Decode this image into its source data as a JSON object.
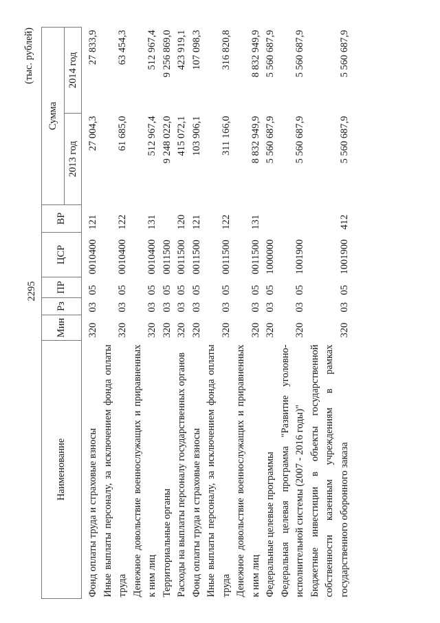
{
  "page_number": "2295",
  "units": "(тыс. рублей)",
  "headers": {
    "name": "Наименование",
    "min": "Мин",
    "rz": "Рз",
    "pr": "ПР",
    "csr": "ЦСР",
    "vr": "ВР",
    "sum": "Сумма",
    "y2013": "2013 год",
    "y2014": "2014 год"
  },
  "rows": [
    {
      "name": "Фонд оплаты труда и страховые взносы",
      "min": "320",
      "rz": "03",
      "pr": "05",
      "csr": "0010400",
      "vr": "121",
      "y2013": "27 004,3",
      "y2014": "27 833,9"
    },
    {
      "name": "Иные выплаты персоналу, за исключением фонда оплаты труда",
      "min": "320",
      "rz": "03",
      "pr": "05",
      "csr": "0010400",
      "vr": "122",
      "y2013": "61 685,0",
      "y2014": "63 454,3"
    },
    {
      "name": "Денежное довольствие военнослужащих и приравненных к ним лиц",
      "min": "320",
      "rz": "03",
      "pr": "05",
      "csr": "0010400",
      "vr": "131",
      "y2013": "512 967,4",
      "y2014": "512 967,4"
    },
    {
      "name": "Территориальные органы",
      "min": "320",
      "rz": "03",
      "pr": "05",
      "csr": "0011500",
      "vr": "",
      "y2013": "9 248 022,0",
      "y2014": "9 256 869,0"
    },
    {
      "name": "Расходы на выплаты персоналу государственных органов",
      "min": "320",
      "rz": "03",
      "pr": "05",
      "csr": "0011500",
      "vr": "120",
      "y2013": "415 072,1",
      "y2014": "423 919,1"
    },
    {
      "name": "Фонд оплаты труда и страховые взносы",
      "min": "320",
      "rz": "03",
      "pr": "05",
      "csr": "0011500",
      "vr": "121",
      "y2013": "103 906,1",
      "y2014": "107 098,3"
    },
    {
      "name": "Иные выплаты персоналу, за исключением фонда оплаты труда",
      "min": "320",
      "rz": "03",
      "pr": "05",
      "csr": "0011500",
      "vr": "122",
      "y2013": "311 166,0",
      "y2014": "316 820,8"
    },
    {
      "name": "Денежное довольствие военнослужащих и приравненных к ним лиц",
      "min": "320",
      "rz": "03",
      "pr": "05",
      "csr": "0011500",
      "vr": "131",
      "y2013": "8 832 949,9",
      "y2014": "8 832 949,9"
    },
    {
      "name": "Федеральные целевые программы",
      "min": "320",
      "rz": "03",
      "pr": "05",
      "csr": "1000000",
      "vr": "",
      "y2013": "5 560 687,9",
      "y2014": "5 560 687,9"
    },
    {
      "name": "Федеральная целевая программа \"Развитие уголовно-исполнительной системы (2007 - 2016 годы)\"",
      "min": "320",
      "rz": "03",
      "pr": "05",
      "csr": "1001900",
      "vr": "",
      "y2013": "5 560 687,9",
      "y2014": "5 560 687,9"
    },
    {
      "name": "Бюджетные инвестиции в объекты государственной собственности казенным учреждениям в рамках государственного оборонного заказа",
      "min": "320",
      "rz": "03",
      "pr": "05",
      "csr": "1001900",
      "vr": "412",
      "y2013": "5 560 687,9",
      "y2014": "5 560 687,9"
    }
  ]
}
